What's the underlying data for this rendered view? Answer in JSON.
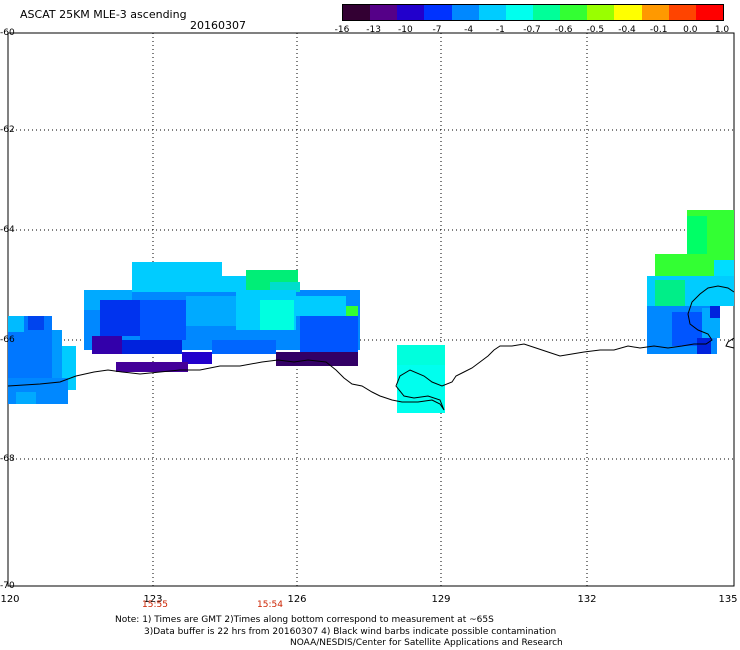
{
  "header": {
    "title": "ASCAT 25KM MLE-3 ascending",
    "date": "20160307"
  },
  "colorbar": {
    "labels": [
      "-16",
      "-13",
      "-10",
      "-7",
      "-4",
      "-1",
      "-0.7",
      "-0.6",
      "-0.5",
      "-0.4",
      "-0.1",
      "0.0",
      "1.0"
    ],
    "colors": [
      "#330033",
      "#550088",
      "#2200cc",
      "#0033ff",
      "#0088ff",
      "#00ccff",
      "#00ffee",
      "#00ff99",
      "#33ff33",
      "#99ff00",
      "#ffff00",
      "#ff9900",
      "#ff4400",
      "#ff0000"
    ]
  },
  "axes": {
    "lat_labels": [
      "-60",
      "-62",
      "-64",
      "-66",
      "-68",
      "-70"
    ],
    "lon_labels": [
      "120",
      "123",
      "126",
      "129",
      "132",
      "135"
    ],
    "time_labels": [
      "15:55",
      "15:54"
    ]
  },
  "notes": [
    "Note: 1) Times are GMT 2)Times along bottom correspond to measurement at ~65S",
    "3)Data buffer is 22 hrs from 20160307 4) Black wind barbs indicate possible contamination",
    "NOAA/NESDIS/Center for Satellite Applications and Research"
  ]
}
